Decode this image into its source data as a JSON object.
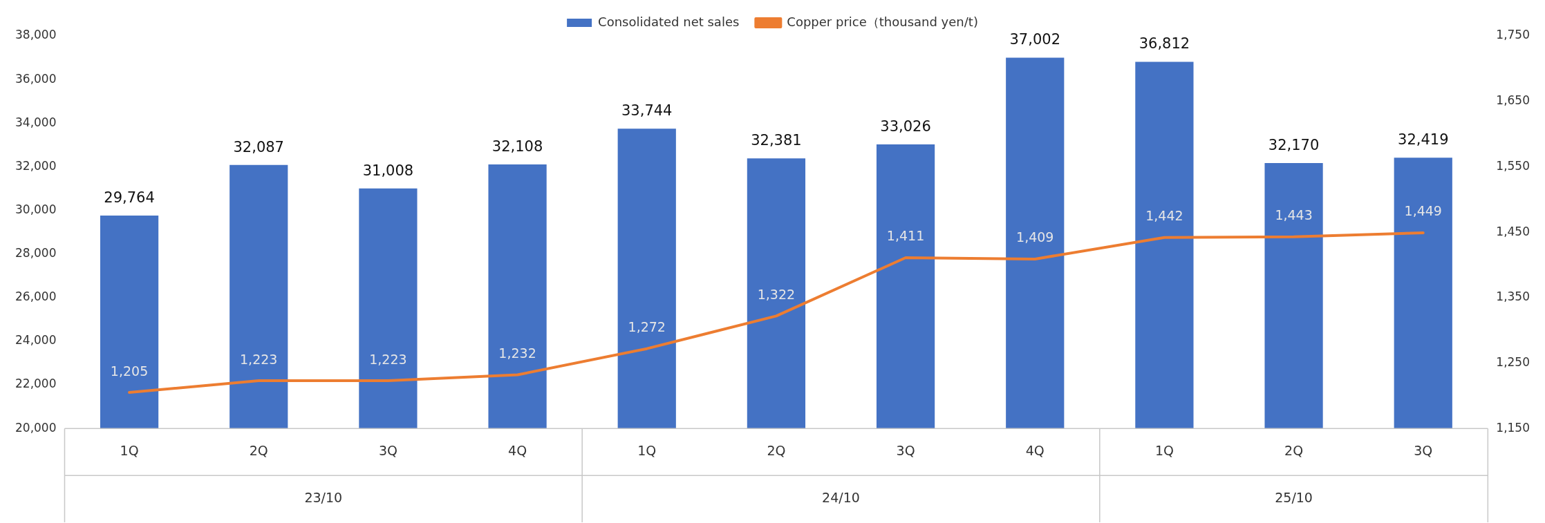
{
  "chart_data": {
    "type": "bar",
    "categories": [
      "1Q",
      "2Q",
      "3Q",
      "4Q",
      "1Q",
      "2Q",
      "3Q",
      "4Q",
      "1Q",
      "2Q",
      "3Q"
    ],
    "series": [
      {
        "name": "Consolidated net sales",
        "color": "#4472c4",
        "values": [
          29764,
          32087,
          31008,
          32108,
          33744,
          32381,
          33026,
          37002,
          36812,
          32170,
          32419
        ],
        "value_labels": [
          "29,764",
          "32,087",
          "31,008",
          "32,108",
          "33,744",
          "32,381",
          "33,026",
          "37,002",
          "36,812",
          "32,170",
          "32,419"
        ]
      },
      {
        "name": "Copper price（thousand yen/t)",
        "type": "line",
        "axis": "y2",
        "color": "#ed7d31",
        "values": [
          1205,
          1223,
          1223,
          1232,
          1272,
          1322,
          1411,
          1409,
          1442,
          1443,
          1449
        ],
        "value_labels": [
          "1,205",
          "1,223",
          "1,223",
          "1,232",
          "1,272",
          "1,322",
          "1,411",
          "1,409",
          "1,442",
          "1,443",
          "1,449"
        ]
      }
    ],
    "ylim": [
      20000,
      38000
    ],
    "yticks": [
      {
        "value": 20000,
        "label": "20,000"
      },
      {
        "value": 22000,
        "label": "22,000"
      },
      {
        "value": 24000,
        "label": "24,000"
      },
      {
        "value": 26000,
        "label": "26,000"
      },
      {
        "value": 28000,
        "label": "28,000"
      },
      {
        "value": 30000,
        "label": "30,000"
      },
      {
        "value": 32000,
        "label": "32,000"
      },
      {
        "value": 34000,
        "label": "34,000"
      },
      {
        "value": 36000,
        "label": "36,000"
      },
      {
        "value": 38000,
        "label": "38,000"
      }
    ],
    "y2lim": [
      1150,
      1750
    ],
    "y2ticks": [
      {
        "value": 1150,
        "label": "1,150"
      },
      {
        "value": 1250,
        "label": "1,250"
      },
      {
        "value": 1350,
        "label": "1,350"
      },
      {
        "value": 1450,
        "label": "1,450"
      },
      {
        "value": 1550,
        "label": "1,550"
      },
      {
        "value": 1650,
        "label": "1,650"
      },
      {
        "value": 1750,
        "label": "1,750"
      }
    ],
    "annotations": [
      "23/10",
      "24/10",
      "25/10"
    ],
    "legend": "top",
    "marker": "none",
    "line_style": "solid"
  }
}
